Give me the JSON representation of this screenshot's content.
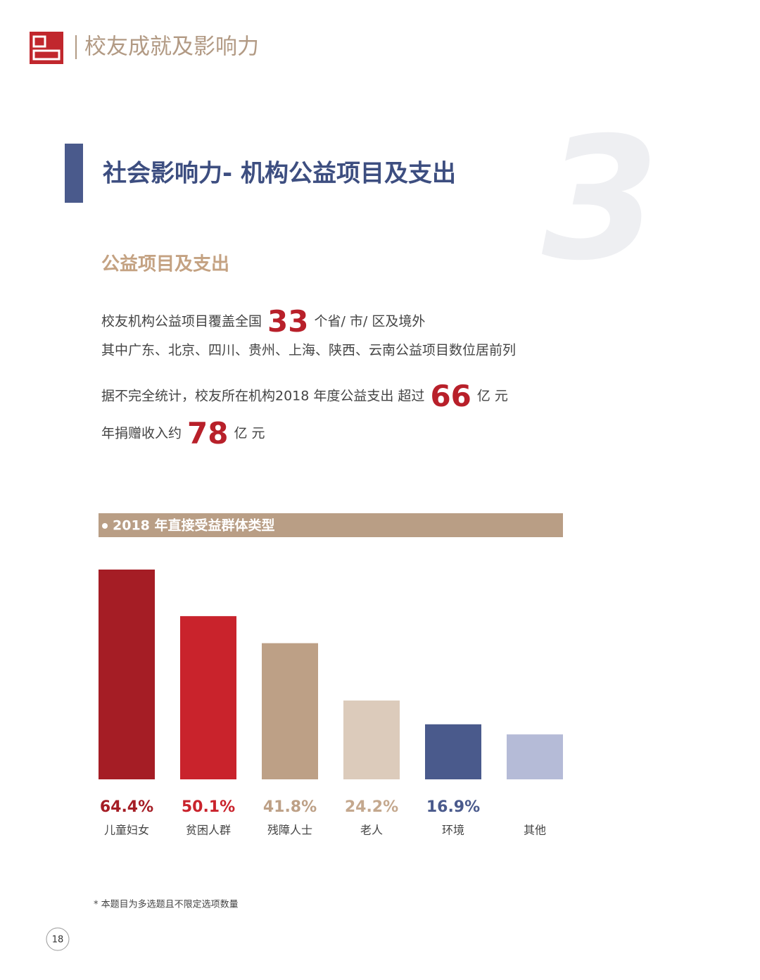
{
  "header": {
    "title": "校友成就及影响力"
  },
  "section": {
    "title": "社会影响力- 机构公益项目及支出",
    "number": "3",
    "subtitle": "公益项目及支出"
  },
  "paragraphs": [
    {
      "before": "校友机构公益项目覆盖全国",
      "highlight": "33",
      "after": "个省/ 市/ 区及境外"
    },
    {
      "before": "其中广东、北京、四川、贵州、上海、陕西、云南公益项目数位居前列"
    },
    {
      "before": "据不完全统计，校友所在机构2018 年度公益支出 超过",
      "highlight": "66",
      "after": "亿 元"
    },
    {
      "before": "年捐赠收入约",
      "highlight": "78",
      "after": "亿 元"
    }
  ],
  "chart_data": {
    "type": "bar",
    "title": "2018 年直接受益群体类型",
    "categories": [
      "儿童妇女",
      "贫困人群",
      "残障人士",
      "老人",
      "环境",
      "其他"
    ],
    "values": [
      64.4,
      50.1,
      41.8,
      24.2,
      16.9,
      13.8
    ],
    "value_labels": [
      "64.4%",
      "50.1%",
      "41.8%",
      "24.2%",
      "16.9%",
      null
    ],
    "colors": [
      "#a51d25",
      "#c9232c",
      "#bda086",
      "#dccbbb",
      "#4a5a8c",
      "#b5bbd7"
    ],
    "label_colors": [
      "#a51d25",
      "#c9232c",
      "#bda086",
      "#c4a88e",
      "#4a5a8c",
      "#b5bbd7"
    ]
  },
  "footnote": "* 本题目为多选题且不限定选项数量",
  "page_number": "18"
}
